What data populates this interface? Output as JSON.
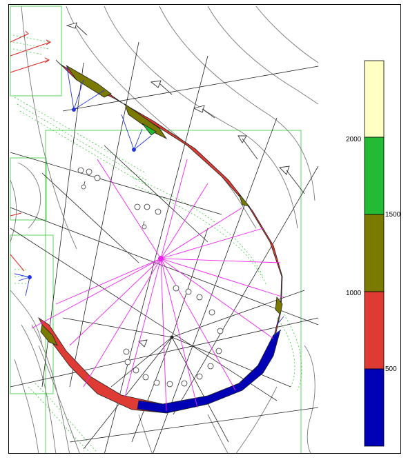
{
  "legend": {
    "ticks": [
      "500",
      "1000",
      "1500",
      "2000"
    ],
    "bands": [
      {
        "color": "#0000b4",
        "range": "below 500"
      },
      {
        "color": "#dd3b33",
        "range": "500-1000"
      },
      {
        "color": "#7a7a00",
        "range": "1000-1500"
      },
      {
        "color": "#22bb33",
        "range": "1500-2000"
      },
      {
        "color": "#ffffc4",
        "range": "above 2000"
      }
    ]
  },
  "colors": {
    "contour": "#555555",
    "grid": "#33cc33",
    "rays": "#ee22ee",
    "vectors_blue": "#2233dd",
    "vectors_red": "#dd2222"
  }
}
